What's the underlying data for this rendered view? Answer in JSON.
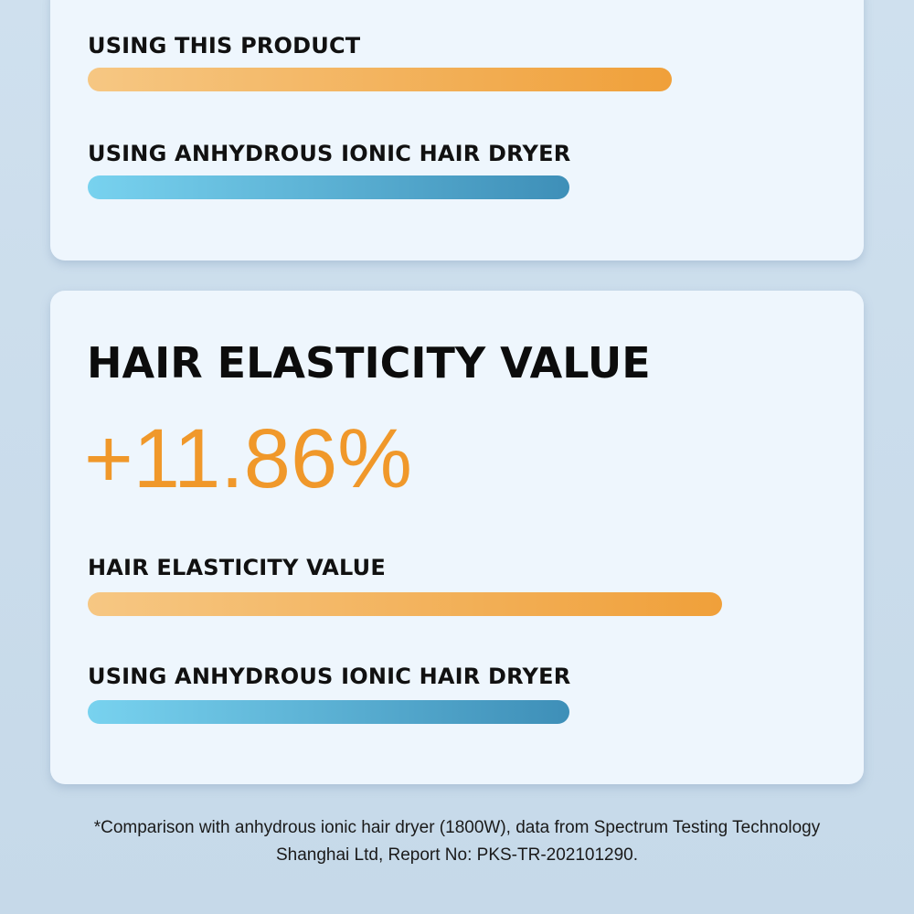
{
  "card1": {
    "label_1": "USING THIS PRODUCT",
    "label_2": "USING ANHYDROUS IONIC HAIR DRYER"
  },
  "card2": {
    "title": "HAIR ELASTICITY VALUE",
    "highlight": "+11.86%",
    "label_1": "HAIR ELASTICITY VALUE",
    "label_2": "USING ANHYDROUS IONIC HAIR DRYER"
  },
  "footnote": {
    "line_1": "*Comparison with anhydrous ionic hair dryer (1800W), data from Spectrum Testing Technology",
    "line_2": "Shanghai Ltd, Report No: PKS-TR-202101290."
  }
}
